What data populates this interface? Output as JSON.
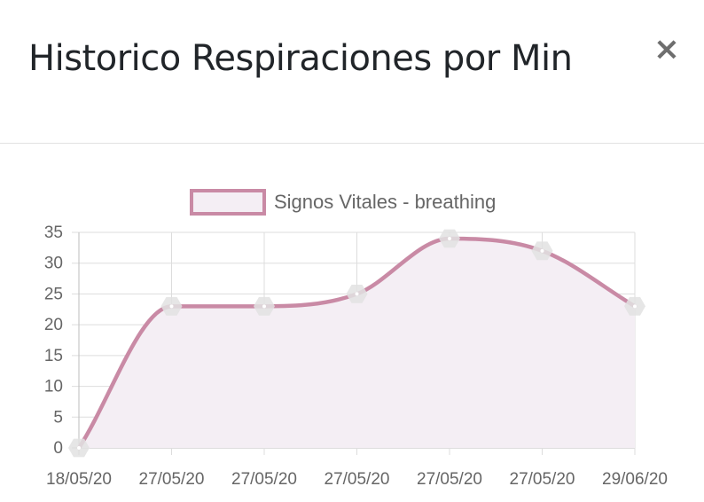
{
  "modal": {
    "title": "Historico Respiraciones por Min",
    "close_label": "×"
  },
  "colors": {
    "line": "#c98aa5",
    "fill": "#f4eef4",
    "point": "#e2e2e2",
    "grid": "#dddddd",
    "text": "#666666"
  },
  "chart_data": {
    "type": "line",
    "categories": [
      "18/05/20",
      "27/05/20",
      "27/05/20",
      "27/05/20",
      "27/05/20",
      "27/05/20",
      "29/06/20"
    ],
    "series": [
      {
        "name": "Signos Vitales - breathing",
        "values": [
          0,
          23,
          23,
          25,
          34,
          32,
          23
        ]
      }
    ],
    "ylim": [
      0,
      35
    ],
    "yticks": [
      "0",
      "5",
      "10",
      "15",
      "20",
      "25",
      "30",
      "35"
    ],
    "grid": true,
    "fill": true,
    "legend_position": "top"
  }
}
